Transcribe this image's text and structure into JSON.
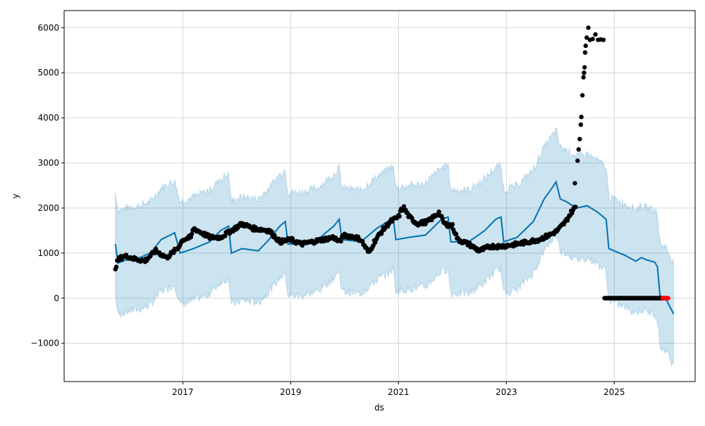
{
  "chart_data": {
    "type": "line",
    "title": "",
    "xlabel": "ds",
    "ylabel": "y",
    "xlim": [
      2014.8,
      2026.5
    ],
    "ylim": [
      -1850,
      6380
    ],
    "grid": true,
    "x_ticks": [
      {
        "v": 2017,
        "label": "2017"
      },
      {
        "v": 2019,
        "label": "2019"
      },
      {
        "v": 2021,
        "label": "2021"
      },
      {
        "v": 2023,
        "label": "2023"
      },
      {
        "v": 2025,
        "label": "2025"
      }
    ],
    "y_ticks": [
      {
        "v": -1000,
        "label": "−1000"
      },
      {
        "v": 0,
        "label": "0"
      },
      {
        "v": 1000,
        "label": "1000"
      },
      {
        "v": 2000,
        "label": "2000"
      },
      {
        "v": 3000,
        "label": "3000"
      },
      {
        "v": 4000,
        "label": "4000"
      },
      {
        "v": 5000,
        "label": "5000"
      },
      {
        "v": 6000,
        "label": "6000"
      }
    ],
    "colors": {
      "forecast": "#0072B2",
      "band": "#0072B2",
      "observed": "#000000",
      "future_observed": "#ff0000"
    },
    "forecast": [
      [
        2015.75,
        1200
      ],
      [
        2015.8,
        780
      ],
      [
        2016.0,
        870
      ],
      [
        2016.2,
        900
      ],
      [
        2016.4,
        1000
      ],
      [
        2016.6,
        1300
      ],
      [
        2016.85,
        1450
      ],
      [
        2016.95,
        1000
      ],
      [
        2017.2,
        1100
      ],
      [
        2017.5,
        1250
      ],
      [
        2017.7,
        1500
      ],
      [
        2017.85,
        1600
      ],
      [
        2017.9,
        1000
      ],
      [
        2018.1,
        1100
      ],
      [
        2018.4,
        1050
      ],
      [
        2018.6,
        1300
      ],
      [
        2018.8,
        1600
      ],
      [
        2018.9,
        1700
      ],
      [
        2018.95,
        1200
      ],
      [
        2019.2,
        1200
      ],
      [
        2019.5,
        1300
      ],
      [
        2019.8,
        1600
      ],
      [
        2019.9,
        1750
      ],
      [
        2019.95,
        1300
      ],
      [
        2020.3,
        1250
      ],
      [
        2020.6,
        1550
      ],
      [
        2020.8,
        1700
      ],
      [
        2020.9,
        1800
      ],
      [
        2020.95,
        1300
      ],
      [
        2021.2,
        1350
      ],
      [
        2021.5,
        1400
      ],
      [
        2021.8,
        1750
      ],
      [
        2021.92,
        1800
      ],
      [
        2021.97,
        1250
      ],
      [
        2022.3,
        1250
      ],
      [
        2022.6,
        1500
      ],
      [
        2022.8,
        1750
      ],
      [
        2022.9,
        1800
      ],
      [
        2022.95,
        1250
      ],
      [
        2023.2,
        1350
      ],
      [
        2023.5,
        1700
      ],
      [
        2023.7,
        2200
      ],
      [
        2023.85,
        2450
      ],
      [
        2023.92,
        2580
      ],
      [
        2024.0,
        2200
      ],
      [
        2024.1,
        2150
      ],
      [
        2024.3,
        2000
      ],
      [
        2024.5,
        2050
      ],
      [
        2024.7,
        1900
      ],
      [
        2024.85,
        1750
      ],
      [
        2024.9,
        1100
      ],
      [
        2025.0,
        1050
      ],
      [
        2025.2,
        950
      ],
      [
        2025.4,
        820
      ],
      [
        2025.5,
        900
      ],
      [
        2025.6,
        850
      ],
      [
        2025.75,
        800
      ],
      [
        2025.8,
        700
      ],
      [
        2025.85,
        50
      ],
      [
        2025.95,
        0
      ],
      [
        2026.1,
        -350
      ]
    ],
    "interval_halfwidth": 1150,
    "observed": [
      [
        2015.75,
        680
      ],
      [
        2015.8,
        850
      ],
      [
        2015.9,
        930
      ],
      [
        2016.0,
        920
      ],
      [
        2016.1,
        870
      ],
      [
        2016.3,
        830
      ],
      [
        2016.5,
        1050
      ],
      [
        2016.7,
        900
      ],
      [
        2016.9,
        1100
      ],
      [
        2017.0,
        1300
      ],
      [
        2017.15,
        1350
      ],
      [
        2017.2,
        1550
      ],
      [
        2017.35,
        1450
      ],
      [
        2017.5,
        1350
      ],
      [
        2017.7,
        1350
      ],
      [
        2017.9,
        1500
      ],
      [
        2018.1,
        1650
      ],
      [
        2018.3,
        1550
      ],
      [
        2018.6,
        1500
      ],
      [
        2018.8,
        1250
      ],
      [
        2019.0,
        1300
      ],
      [
        2019.2,
        1200
      ],
      [
        2019.4,
        1250
      ],
      [
        2019.6,
        1300
      ],
      [
        2019.8,
        1350
      ],
      [
        2019.9,
        1250
      ],
      [
        2020.0,
        1400
      ],
      [
        2020.2,
        1350
      ],
      [
        2020.3,
        1300
      ],
      [
        2020.45,
        1000
      ],
      [
        2020.55,
        1250
      ],
      [
        2020.7,
        1500
      ],
      [
        2020.85,
        1700
      ],
      [
        2021.0,
        1800
      ],
      [
        2021.05,
        1950
      ],
      [
        2021.1,
        2000
      ],
      [
        2021.2,
        1800
      ],
      [
        2021.35,
        1650
      ],
      [
        2021.55,
        1700
      ],
      [
        2021.75,
        1900
      ],
      [
        2021.85,
        1650
      ],
      [
        2022.0,
        1600
      ],
      [
        2022.1,
        1300
      ],
      [
        2022.3,
        1200
      ],
      [
        2022.5,
        1050
      ],
      [
        2022.7,
        1150
      ],
      [
        2022.9,
        1150
      ],
      [
        2023.2,
        1200
      ],
      [
        2023.4,
        1250
      ],
      [
        2023.6,
        1300
      ],
      [
        2023.8,
        1400
      ],
      [
        2023.95,
        1500
      ],
      [
        2024.1,
        1700
      ],
      [
        2024.2,
        1900
      ],
      [
        2024.3,
        2050
      ]
    ],
    "observed_spike": [
      [
        2024.27,
        2550
      ],
      [
        2024.32,
        3050
      ],
      [
        2024.34,
        3300
      ],
      [
        2024.36,
        3530
      ],
      [
        2024.38,
        3850
      ],
      [
        2024.39,
        4020
      ],
      [
        2024.41,
        4500
      ],
      [
        2024.43,
        4900
      ],
      [
        2024.44,
        5000
      ],
      [
        2024.45,
        5120
      ],
      [
        2024.46,
        5450
      ],
      [
        2024.47,
        5600
      ],
      [
        2024.49,
        5780
      ],
      [
        2024.52,
        6000
      ],
      [
        2024.55,
        5730
      ],
      [
        2024.6,
        5750
      ],
      [
        2024.65,
        5850
      ],
      [
        2024.7,
        5730
      ],
      [
        2024.75,
        5740
      ],
      [
        2024.8,
        5730
      ]
    ],
    "observed_zero_range": [
      2024.82,
      2025.9
    ],
    "future_observed_range": [
      2025.9,
      2026.0
    ]
  }
}
